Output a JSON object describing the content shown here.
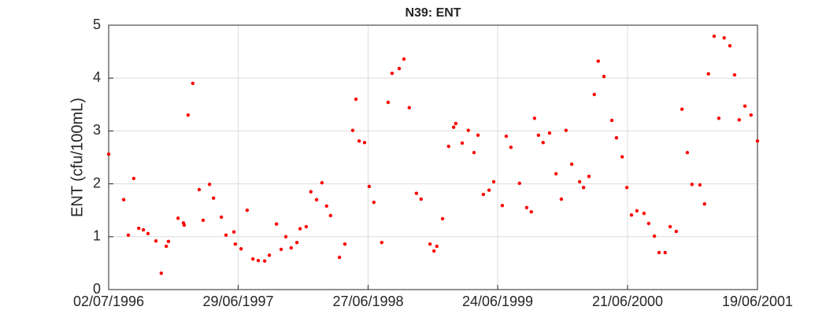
{
  "chart_data": {
    "type": "scatter",
    "title": "N39: ENT",
    "y_label": "ENT (cfu/100mL)",
    "color": "#ff0000",
    "grid": true,
    "xlim": [
      "1996-07-02",
      "2001-06-19"
    ],
    "xticks": [
      {
        "value": "1996-07-02",
        "label": "02/07/1996"
      },
      {
        "value": "1997-06-29",
        "label": "29/06/1997"
      },
      {
        "value": "1998-06-27",
        "label": "27/06/1998"
      },
      {
        "value": "1999-06-24",
        "label": "24/06/1999"
      },
      {
        "value": "2000-06-21",
        "label": "21/06/2000"
      },
      {
        "value": "2001-06-19",
        "label": "19/06/2001"
      }
    ],
    "ylim": [
      0,
      5
    ],
    "yticks": [
      0,
      1,
      2,
      3,
      4,
      5
    ],
    "x": [
      "1996-07-02",
      "1996-08-13",
      "1996-08-26",
      "1996-09-10",
      "1996-09-24",
      "1996-10-07",
      "1996-10-20",
      "1996-11-11",
      "1996-11-26",
      "1996-12-10",
      "1996-12-16",
      "1997-01-12",
      "1997-01-27",
      "1997-01-29",
      "1997-02-09",
      "1997-02-22",
      "1997-03-12",
      "1997-03-23",
      "1997-04-10",
      "1997-04-21",
      "1997-05-13",
      "1997-05-26",
      "1997-06-17",
      "1997-06-21",
      "1997-07-07",
      "1997-07-24",
      "1997-08-09",
      "1997-08-24",
      "1997-09-11",
      "1997-09-24",
      "1997-10-14",
      "1997-10-27",
      "1997-11-09",
      "1997-11-24",
      "1997-12-10",
      "1997-12-19",
      "1998-01-05",
      "1998-01-18",
      "1998-02-03",
      "1998-02-18",
      "1998-03-03",
      "1998-03-14",
      "1998-04-08",
      "1998-04-23",
      "1998-05-15",
      "1998-05-24",
      "1998-06-02",
      "1998-06-17",
      "1998-06-30",
      "1998-07-13",
      "1998-08-04",
      "1998-08-22",
      "1998-09-02",
      "1998-09-22",
      "1998-10-05",
      "1998-10-20",
      "1998-11-09",
      "1998-11-22",
      "1998-12-17",
      "1998-12-28",
      "1999-01-05",
      "1999-01-21",
      "1999-02-07",
      "1999-02-21",
      "1999-02-27",
      "1999-03-17",
      "1999-04-03",
      "1999-04-19",
      "1999-04-30",
      "1999-05-15",
      "1999-05-31",
      "1999-06-13",
      "1999-07-07",
      "1999-07-18",
      "1999-07-31",
      "1999-08-24",
      "1999-09-13",
      "1999-09-26",
      "1999-10-05",
      "1999-10-16",
      "1999-10-29",
      "1999-11-16",
      "1999-12-04",
      "1999-12-19",
      "2000-01-01",
      "2000-01-17",
      "2000-02-08",
      "2000-02-19",
      "2000-03-05",
      "2000-03-20",
      "2000-03-31",
      "2000-04-16",
      "2000-05-08",
      "2000-05-21",
      "2000-06-06",
      "2000-06-19",
      "2000-07-02",
      "2000-07-17",
      "2000-08-06",
      "2000-08-19",
      "2000-09-04",
      "2000-09-17",
      "2000-10-04",
      "2000-10-18",
      "2000-11-04",
      "2000-11-20",
      "2000-12-05",
      "2000-12-18",
      "2001-01-09",
      "2001-01-22",
      "2001-02-02",
      "2001-02-18",
      "2001-03-03",
      "2001-03-18",
      "2001-04-03",
      "2001-04-16",
      "2001-04-29",
      "2001-05-15",
      "2001-06-01",
      "2001-06-19"
    ],
    "values": [
      2.56,
      1.7,
      1.03,
      2.1,
      1.16,
      1.13,
      1.06,
      0.92,
      0.31,
      0.82,
      0.91,
      1.35,
      1.26,
      1.22,
      3.3,
      3.9,
      1.89,
      1.31,
      1.99,
      1.73,
      1.37,
      1.03,
      1.09,
      0.86,
      0.77,
      1.5,
      0.58,
      0.55,
      0.54,
      0.65,
      1.24,
      0.76,
      1.0,
      0.79,
      0.89,
      1.15,
      1.19,
      1.85,
      1.7,
      2.02,
      1.58,
      1.4,
      0.61,
      0.86,
      3.01,
      3.6,
      2.81,
      2.78,
      1.95,
      1.65,
      0.89,
      3.54,
      4.09,
      4.18,
      4.36,
      3.44,
      1.82,
      1.71,
      0.86,
      0.73,
      0.82,
      1.34,
      2.71,
      3.07,
      3.14,
      2.77,
      3.01,
      2.59,
      2.92,
      1.8,
      1.88,
      2.04,
      1.59,
      2.9,
      2.69,
      2.01,
      1.55,
      1.47,
      3.24,
      2.92,
      2.78,
      2.96,
      2.19,
      1.71,
      3.01,
      2.37,
      2.04,
      1.93,
      2.14,
      3.69,
      4.32,
      4.03,
      3.2,
      2.87,
      2.51,
      1.93,
      1.41,
      1.49,
      1.44,
      1.25,
      1.01,
      0.7,
      0.7,
      1.19,
      1.1,
      3.41,
      2.59,
      1.99,
      1.98,
      1.62,
      4.08,
      4.79,
      3.24,
      4.76,
      4.61,
      4.06,
      3.21,
      3.47,
      3.3,
      2.81
    ]
  }
}
